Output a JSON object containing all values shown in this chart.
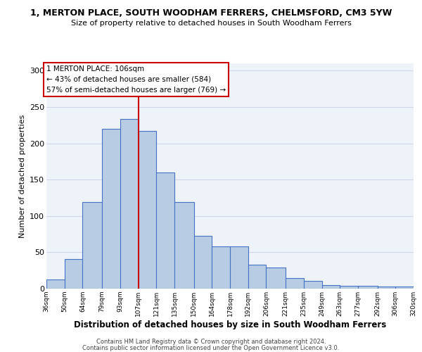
{
  "title": "1, MERTON PLACE, SOUTH WOODHAM FERRERS, CHELMSFORD, CM3 5YW",
  "subtitle": "Size of property relative to detached houses in South Woodham Ferrers",
  "xlabel": "Distribution of detached houses by size in South Woodham Ferrers",
  "ylabel": "Number of detached properties",
  "bar_left_edges": [
    36,
    50,
    64,
    79,
    93,
    107,
    121,
    135,
    150,
    164,
    178,
    192,
    206,
    221,
    235,
    249,
    263,
    277,
    292,
    306
  ],
  "bar_heights": [
    13,
    41,
    119,
    220,
    233,
    217,
    160,
    119,
    73,
    58,
    58,
    33,
    29,
    15,
    11,
    5,
    4,
    4,
    3,
    3
  ],
  "bar_widths": [
    14,
    14,
    15,
    14,
    14,
    14,
    14,
    15,
    14,
    14,
    14,
    14,
    15,
    14,
    14,
    14,
    14,
    15,
    14,
    14
  ],
  "tick_labels": [
    "36sqm",
    "50sqm",
    "64sqm",
    "79sqm",
    "93sqm",
    "107sqm",
    "121sqm",
    "135sqm",
    "150sqm",
    "164sqm",
    "178sqm",
    "192sqm",
    "206sqm",
    "221sqm",
    "235sqm",
    "249sqm",
    "263sqm",
    "277sqm",
    "292sqm",
    "306sqm",
    "320sqm"
  ],
  "tick_positions": [
    36,
    50,
    64,
    79,
    93,
    107,
    121,
    135,
    150,
    164,
    178,
    192,
    206,
    221,
    235,
    249,
    263,
    277,
    292,
    306,
    320
  ],
  "bar_color": "#b8cce4",
  "bar_edge_color": "#4472c4",
  "vline_x": 107,
  "vline_color": "#cc0000",
  "annotation_line1": "1 MERTON PLACE: 106sqm",
  "annotation_line2": "← 43% of detached houses are smaller (584)",
  "annotation_line3": "57% of semi-detached houses are larger (769) →",
  "annotation_box_color": "#cc0000",
  "ylim": [
    0,
    310
  ],
  "yticks": [
    0,
    50,
    100,
    150,
    200,
    250,
    300
  ],
  "grid_color": "#d0d8e8",
  "background_color": "#eef2f9",
  "footer1": "Contains HM Land Registry data © Crown copyright and database right 2024.",
  "footer2": "Contains public sector information licensed under the Open Government Licence v3.0."
}
